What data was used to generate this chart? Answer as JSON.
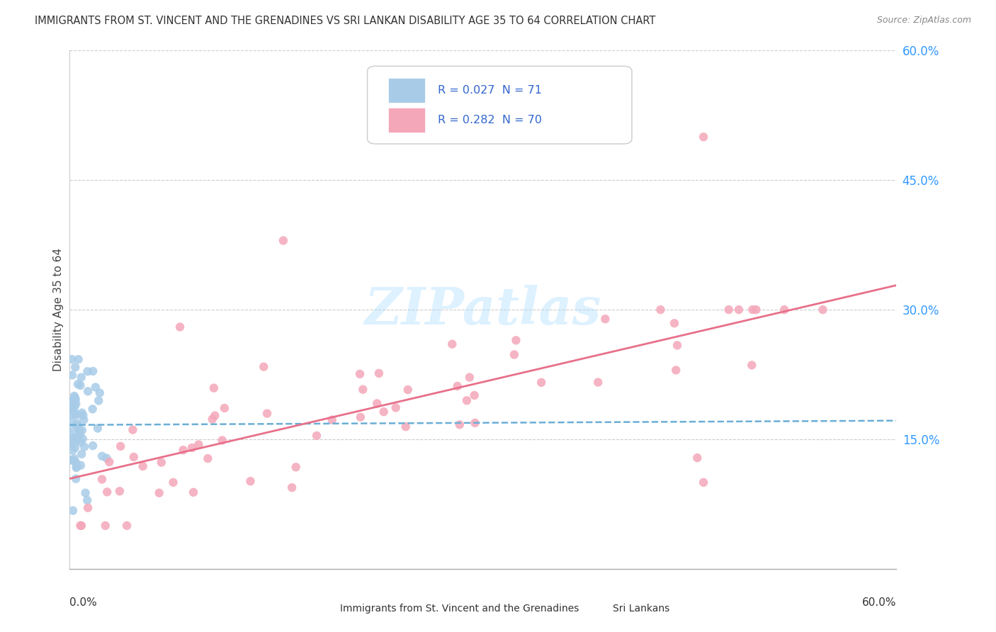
{
  "title": "IMMIGRANTS FROM ST. VINCENT AND THE GRENADINES VS SRI LANKAN DISABILITY AGE 35 TO 64 CORRELATION CHART",
  "source": "Source: ZipAtlas.com",
  "ylabel": "Disability Age 35 to 64",
  "xmin": 0.0,
  "xmax": 0.6,
  "ymin": 0.0,
  "ymax": 0.6,
  "ytick_vals": [
    0.0,
    0.15,
    0.3,
    0.45,
    0.6
  ],
  "ytick_labels": [
    "",
    "15.0%",
    "30.0%",
    "45.0%",
    "60.0%"
  ],
  "series1_label": "R = 0.027  N = 71",
  "series2_label": "R = 0.282  N = 70",
  "series1_color": "#a8cce8",
  "series2_color": "#f4a7b9",
  "series1_line_color": "#6baed6",
  "series2_line_color": "#e8708a",
  "series1_R": 0.027,
  "series1_N": 71,
  "series2_R": 0.282,
  "series2_N": 70,
  "legend_text_color": "#3366cc",
  "ytick_color": "#3399ff",
  "watermark": "ZIPatlas",
  "background_color": "#ffffff",
  "grid_color": "#cccccc",
  "title_color": "#333333",
  "source_color": "#888888",
  "bottom_legend_label1": "Immigrants from St. Vincent and the Grenadines",
  "bottom_legend_label2": "Sri Lankans"
}
